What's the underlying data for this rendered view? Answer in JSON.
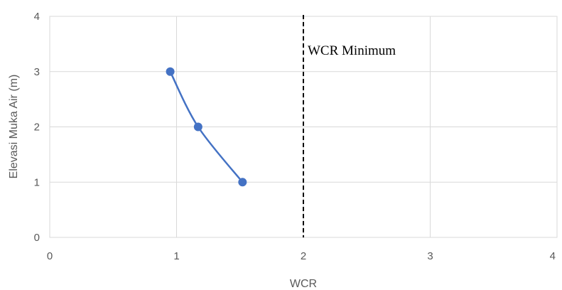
{
  "chart_data": {
    "type": "scatter",
    "xlabel": "WCR",
    "ylabel": "Elevasi Muka Air (m)",
    "xlim": [
      0,
      4
    ],
    "ylim": [
      0,
      4
    ],
    "xticks": [
      "0",
      "1",
      "2",
      "3",
      "4"
    ],
    "yticks": [
      "0",
      "1",
      "2",
      "3",
      "4"
    ],
    "grid": true,
    "series": [
      {
        "x": [
          0.95,
          1.17,
          1.52
        ],
        "y": [
          3,
          2,
          1
        ],
        "color": "#4472C4",
        "line": "smooth",
        "marker": "circle"
      }
    ],
    "reference_line": {
      "x": 2,
      "style": "dashed",
      "color": "#000000",
      "label": "WCR Minimum"
    }
  }
}
